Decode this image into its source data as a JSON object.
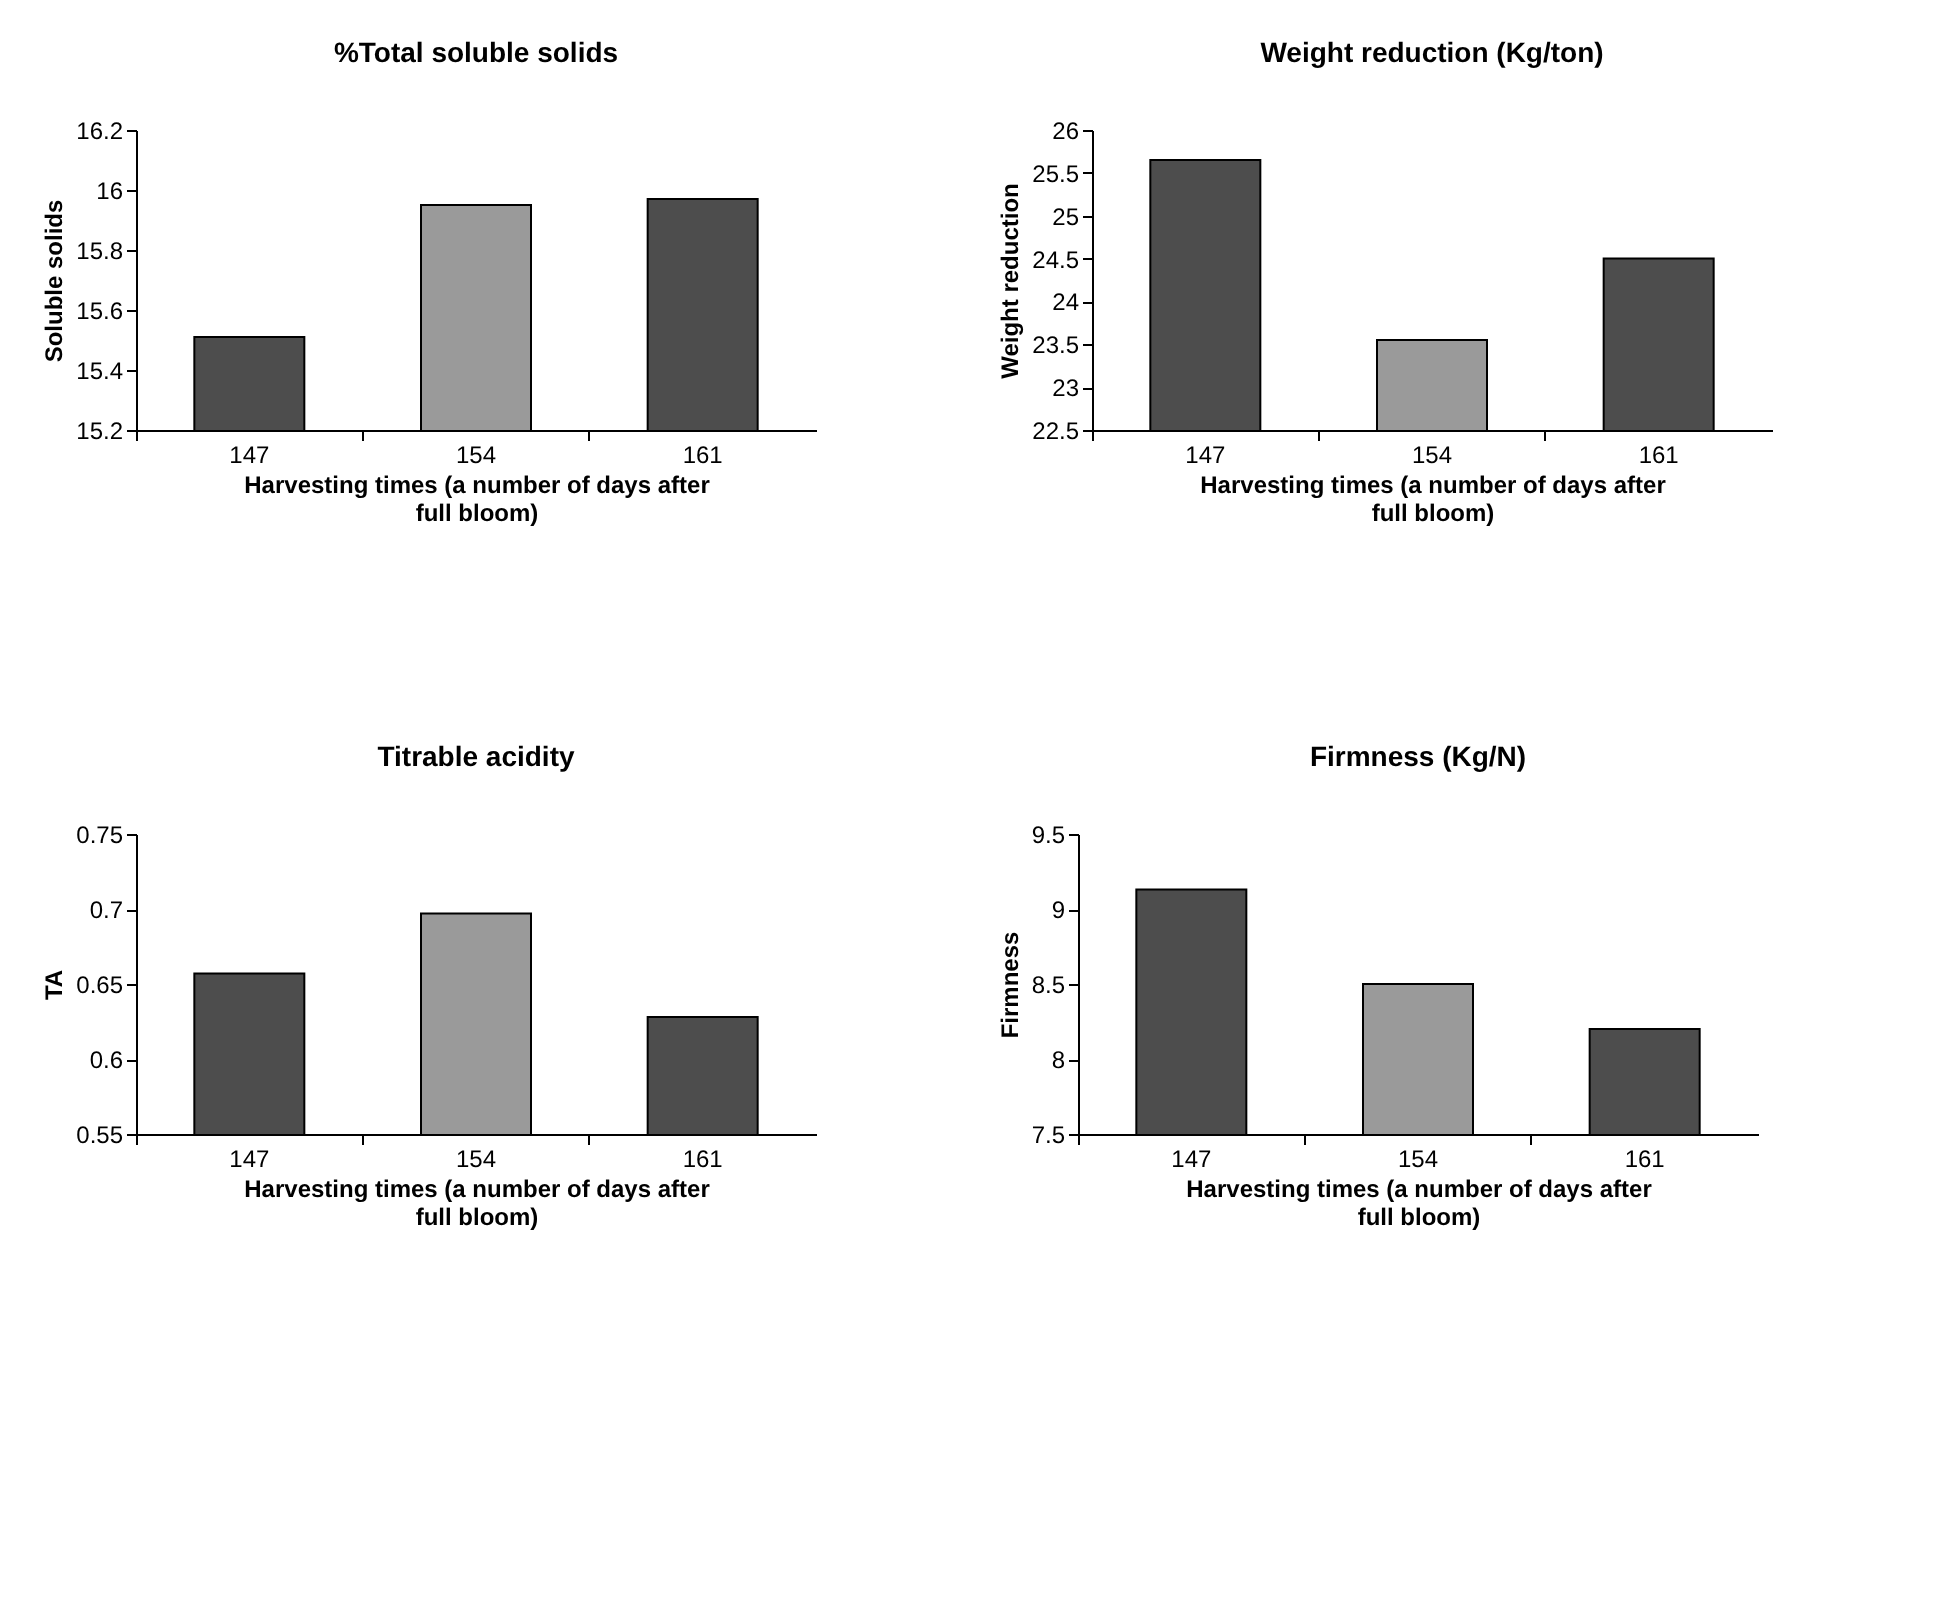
{
  "chart_data": [
    {
      "type": "bar",
      "title": "%Total soluble solids",
      "xlabel": "Harvesting times (a number of days after full bloom)",
      "ylabel": "Soluble solids",
      "categories": [
        "147",
        "154",
        "161"
      ],
      "values": [
        15.51,
        15.95,
        15.97
      ],
      "colors": [
        "#4d4d4d",
        "#9a9a9a",
        "#4d4d4d"
      ],
      "ylim": [
        15.2,
        16.2
      ],
      "yticks": [
        15.2,
        15.4,
        15.6,
        15.8,
        16,
        16.2
      ]
    },
    {
      "type": "bar",
      "title": "Weight reduction (Kg/ton)",
      "xlabel": "Harvesting times (a number of days after full bloom)",
      "ylabel": "Weight reduction",
      "categories": [
        "147",
        "154",
        "161"
      ],
      "values": [
        25.65,
        23.55,
        24.5
      ],
      "colors": [
        "#4d4d4d",
        "#9a9a9a",
        "#4d4d4d"
      ],
      "ylim": [
        22.5,
        26
      ],
      "yticks": [
        22.5,
        23,
        23.5,
        24,
        24.5,
        25,
        25.5,
        26
      ]
    },
    {
      "type": "bar",
      "title": "Titrable acidity",
      "xlabel": "Harvesting times (a number of days after full bloom)",
      "ylabel": "TA",
      "categories": [
        "147",
        "154",
        "161"
      ],
      "values": [
        0.657,
        0.697,
        0.628
      ],
      "colors": [
        "#4d4d4d",
        "#9a9a9a",
        "#4d4d4d"
      ],
      "ylim": [
        0.55,
        0.75
      ],
      "yticks": [
        0.55,
        0.6,
        0.65,
        0.7,
        0.75
      ]
    },
    {
      "type": "bar",
      "title": "Firmness (Kg/N)",
      "xlabel": "Harvesting times (a number of days after full bloom)",
      "ylabel": "Firmness",
      "categories": [
        "147",
        "154",
        "161"
      ],
      "values": [
        9.13,
        8.5,
        8.2
      ],
      "colors": [
        "#4d4d4d",
        "#9a9a9a",
        "#4d4d4d"
      ],
      "ylim": [
        7.5,
        9.5
      ],
      "yticks": [
        7.5,
        8,
        8.5,
        9,
        9.5
      ]
    }
  ]
}
